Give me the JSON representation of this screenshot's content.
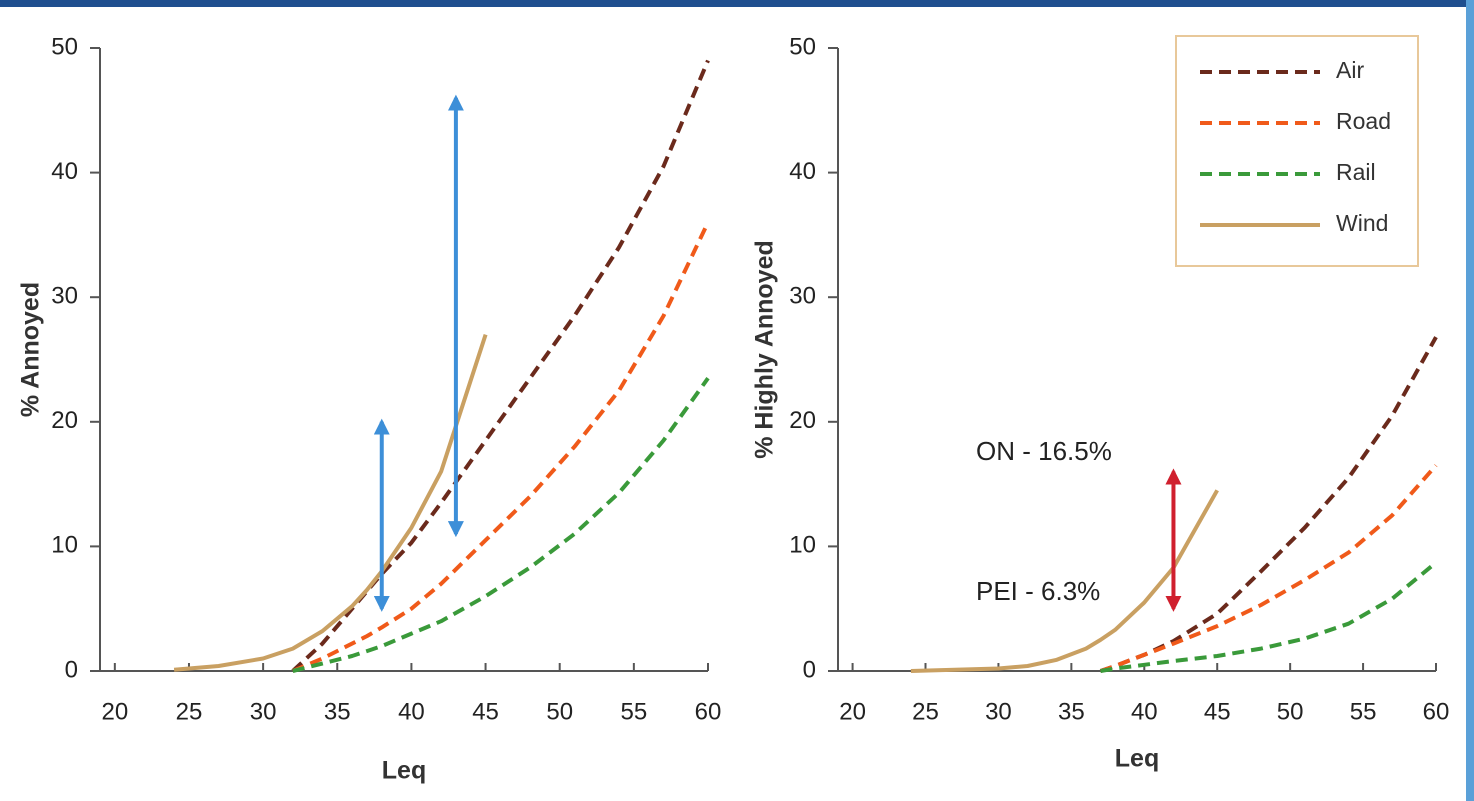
{
  "chart_data": [
    {
      "type": "line",
      "ylabel": "% Annoyed",
      "xlabel": "Leq",
      "x": [
        24,
        27,
        30,
        32,
        34,
        36,
        37,
        38,
        40,
        42,
        45,
        48,
        51,
        54,
        57,
        60
      ],
      "series": [
        {
          "name": "Air",
          "color": "#6b2a1c",
          "dash": true,
          "values": [
            null,
            null,
            null,
            0,
            2.2,
            5,
            6.4,
            7.8,
            10.3,
            13.5,
            18.5,
            23.5,
            28.5,
            34,
            40.5,
            49
          ]
        },
        {
          "name": "Road",
          "color": "#f05a1a",
          "dash": true,
          "values": [
            null,
            null,
            null,
            0,
            1,
            2.2,
            2.8,
            3.5,
            5,
            7,
            10.5,
            14,
            18,
            22.5,
            28.5,
            36
          ]
        },
        {
          "name": "Rail",
          "color": "#3a9a3a",
          "dash": true,
          "values": [
            null,
            null,
            null,
            0,
            0.6,
            1.2,
            1.6,
            2,
            3,
            4,
            6,
            8.3,
            11,
            14.3,
            18.5,
            23.5
          ]
        },
        {
          "name": "Wind",
          "color": "#c9a062",
          "dash": false,
          "values": [
            0.1,
            0.4,
            1,
            1.8,
            3.2,
            5.2,
            6.5,
            8,
            11.5,
            16,
            27,
            null,
            null,
            null,
            null,
            null
          ]
        }
      ],
      "arrows": [
        {
          "x": 38,
          "from": 5,
          "to": 20,
          "color": "#3d8fd8"
        },
        {
          "x": 43,
          "from": 11,
          "to": 46,
          "color": "#3d8fd8"
        }
      ],
      "xlim": [
        19,
        60
      ],
      "ylim": [
        0,
        50
      ],
      "xticks": [
        20,
        25,
        30,
        35,
        40,
        45,
        50,
        55,
        60
      ],
      "yticks": [
        0,
        10,
        20,
        30,
        40,
        50
      ],
      "grid": false
    },
    {
      "type": "line",
      "ylabel": "% Highly Annoyed",
      "xlabel": "Leq",
      "x": [
        24,
        27,
        30,
        32,
        34,
        36,
        37,
        38,
        40,
        42,
        45,
        48,
        51,
        54,
        57,
        60
      ],
      "series": [
        {
          "name": "Air",
          "color": "#6b2a1c",
          "dash": true,
          "values": [
            null,
            null,
            null,
            null,
            null,
            null,
            0,
            0.4,
            1.3,
            2.4,
            4.6,
            8,
            11.5,
            15.5,
            20.5,
            26.8
          ]
        },
        {
          "name": "Road",
          "color": "#f05a1a",
          "dash": true,
          "values": [
            null,
            null,
            null,
            null,
            null,
            null,
            0,
            0.4,
            1.3,
            2.2,
            3.6,
            5.3,
            7.3,
            9.5,
            12.5,
            16.5
          ]
        },
        {
          "name": "Rail",
          "color": "#3a9a3a",
          "dash": true,
          "values": [
            null,
            null,
            null,
            null,
            null,
            null,
            0,
            0.2,
            0.5,
            0.8,
            1.2,
            1.8,
            2.6,
            3.8,
            5.8,
            8.7
          ]
        },
        {
          "name": "Wind",
          "color": "#c9a062",
          "dash": false,
          "values": [
            0,
            0.1,
            0.2,
            0.4,
            0.9,
            1.8,
            2.5,
            3.3,
            5.5,
            8.3,
            14.5,
            null,
            null,
            null,
            null,
            null
          ]
        }
      ],
      "arrows": [
        {
          "x": 42,
          "from": 5,
          "to": 16,
          "color": "#d0202e"
        }
      ],
      "annotations": [
        "ON - 16.5%",
        "PEI - 6.3%"
      ],
      "xlim": [
        19,
        60
      ],
      "ylim": [
        0,
        50
      ],
      "xticks": [
        20,
        25,
        30,
        35,
        40,
        45,
        50,
        55,
        60
      ],
      "yticks": [
        0,
        10,
        20,
        30,
        40,
        50
      ],
      "legend": "upper right",
      "grid": false
    }
  ]
}
